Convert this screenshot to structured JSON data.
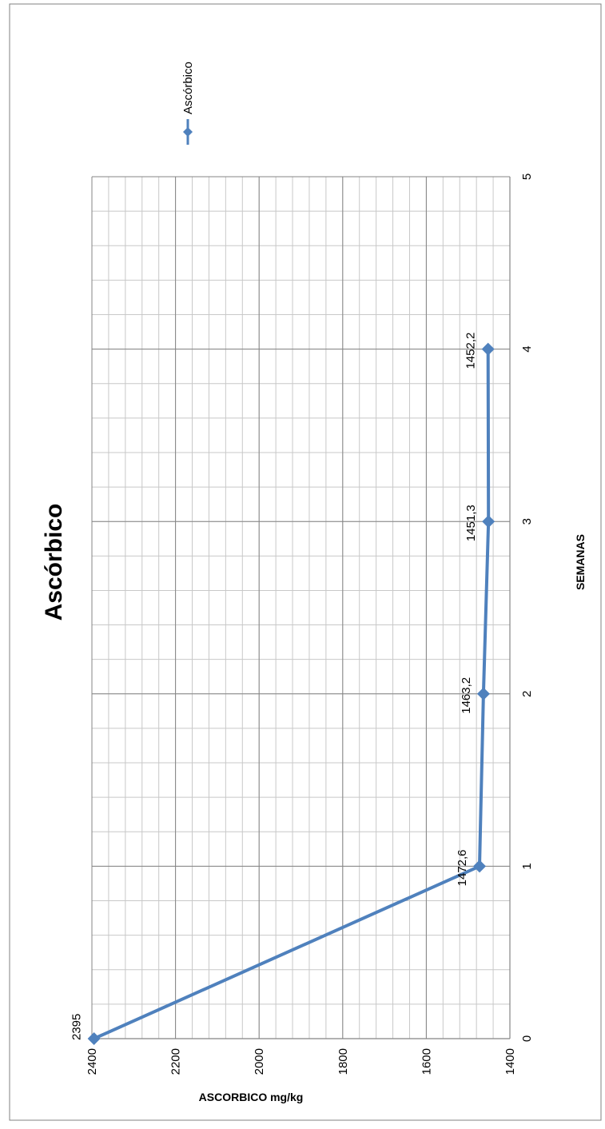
{
  "chart_data": {
    "type": "line",
    "title": "Ascórbico",
    "xlabel": "SEMANAS",
    "ylabel": "ASCORBICO mg/kg",
    "xlim": [
      0,
      5
    ],
    "ylim": [
      1400,
      2400
    ],
    "x_ticks": [
      "0",
      "1",
      "2",
      "3",
      "4",
      "5"
    ],
    "y_ticks": [
      "1400",
      "1600",
      "1800",
      "2000",
      "2200",
      "2400"
    ],
    "grid": true,
    "legend_position": "right",
    "series": [
      {
        "name": "Ascórbico",
        "color": "#4F81BD",
        "marker": "diamond",
        "x": [
          0,
          1,
          2,
          3,
          4
        ],
        "values": [
          2395,
          1472.6,
          1463.2,
          1451.3,
          1452.2
        ],
        "labels": [
          "2395",
          "1472,6",
          "1463,2",
          "1451,3",
          "1452,2"
        ]
      }
    ]
  }
}
